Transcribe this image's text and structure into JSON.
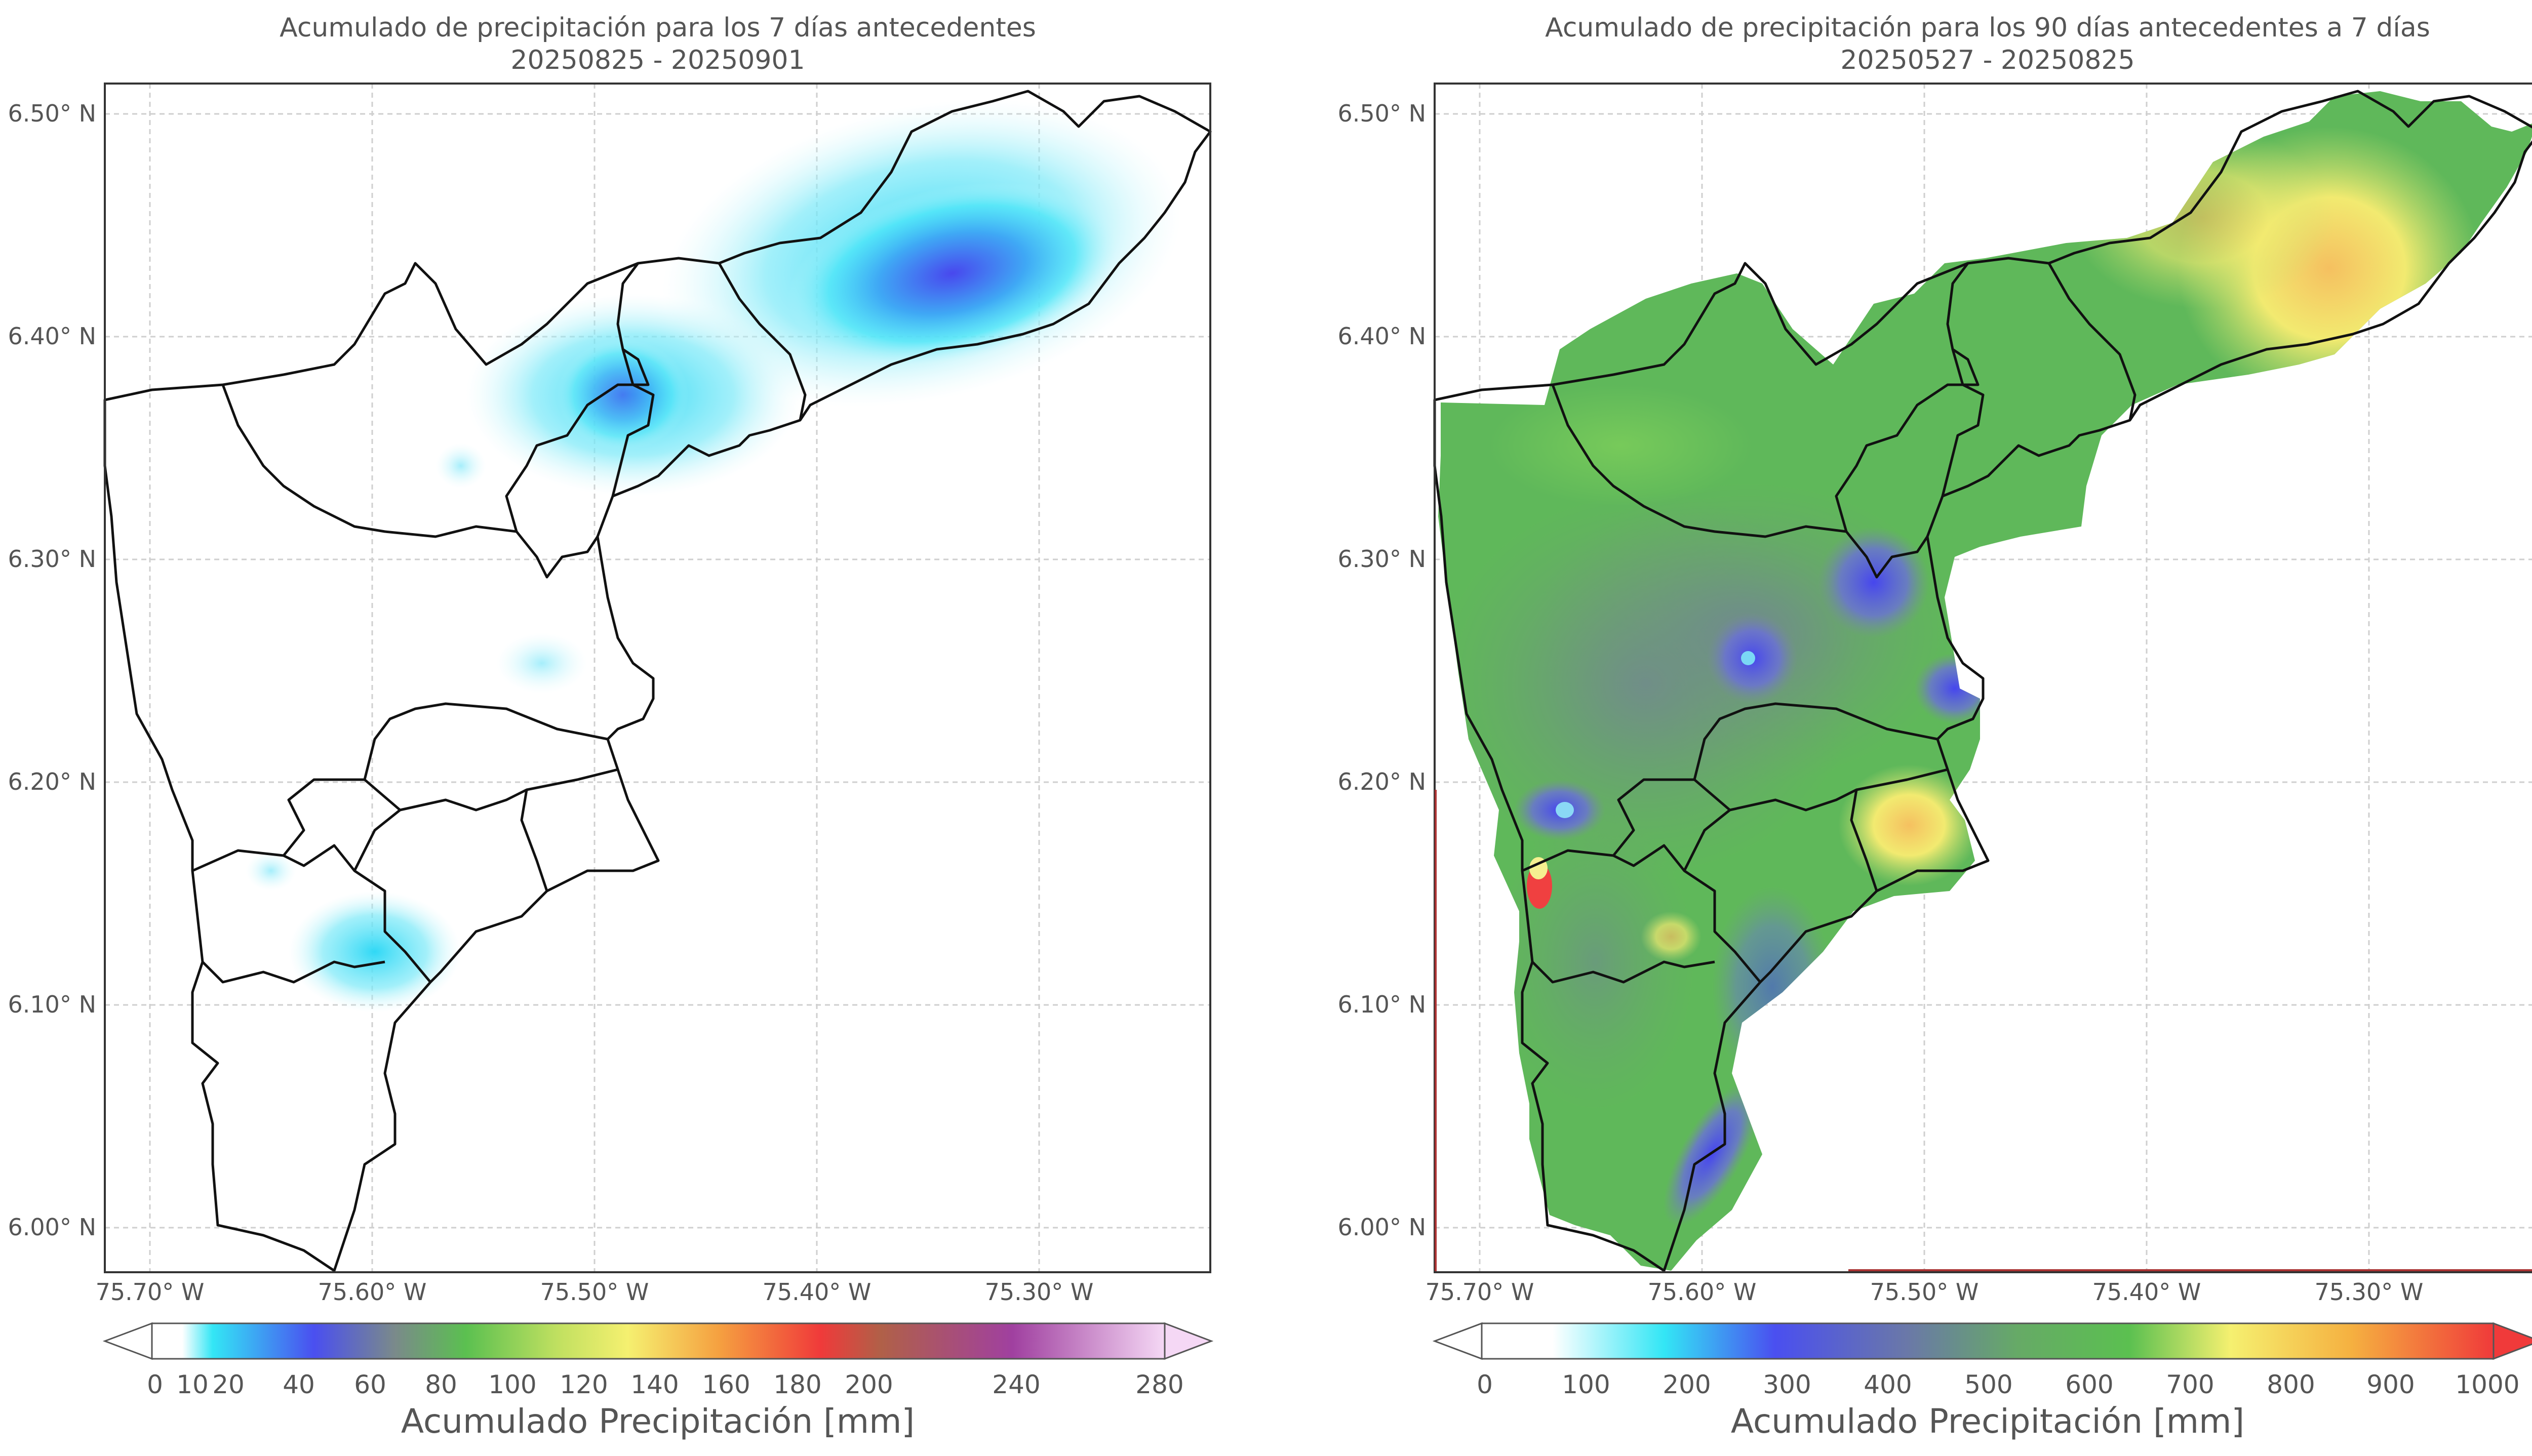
{
  "left_map": {
    "title_line1": "Acumulado de precipitación para los 7 días antecedentes",
    "title_line2": "20250825 - 20250901",
    "colorbar": {
      "label": "Acumulado Precipitación [mm]",
      "ticks": [
        "0",
        "10",
        "20",
        "40",
        "60",
        "80",
        "100",
        "120",
        "140",
        "160",
        "180",
        "200",
        "240",
        "280"
      ],
      "extend": "both"
    }
  },
  "right_map": {
    "title_line1": "Acumulado de precipitación para los 90 días antecedentes a 7 días",
    "title_line2": "20250527 - 20250825",
    "colorbar": {
      "label": "Acumulado Precipitación [mm]",
      "ticks": [
        "0",
        "100",
        "200",
        "300",
        "400",
        "500",
        "600",
        "700",
        "800",
        "900",
        "1000"
      ],
      "extend": "both"
    }
  },
  "axes": {
    "lat_ticks": [
      "6.50° N",
      "6.40° N",
      "6.30° N",
      "6.20° N",
      "6.10° N",
      "6.00° N"
    ],
    "lon_ticks": [
      "75.70° W",
      "75.60° W",
      "75.50° W",
      "75.40° W",
      "75.30° W"
    ]
  },
  "colors": {
    "cyan": "#33e6f5",
    "blue": "#4a4ff0",
    "gray": "#7a8a8a",
    "green": "#5bc050",
    "yellow": "#f5f070",
    "orange": "#f5b040",
    "red": "#f03a3a",
    "purple": "#a040a0",
    "pink": "#f5d8f5"
  }
}
